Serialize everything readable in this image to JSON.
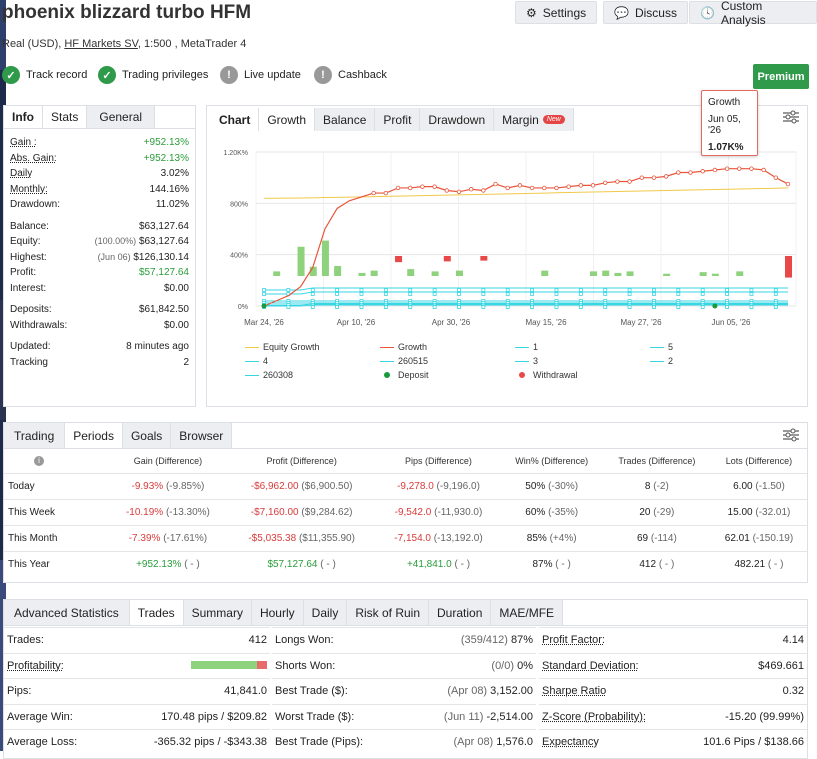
{
  "header": {
    "title": "phoenix blizzard turbo HFM",
    "settings": "Settings",
    "discuss": "Discuss",
    "custom": "Custom Analysis",
    "sub_prefix": "Real (USD), ",
    "broker": "HF Markets SV",
    "sub_suffix": ", 1:500 , MetaTrader 4"
  },
  "badges": [
    "Track record",
    "Trading privileges",
    "Live update",
    "Cashback"
  ],
  "premium": "Premium",
  "info_tabs": [
    "Info",
    "Stats",
    "General"
  ],
  "info_rows": [
    {
      "label": "Gain :",
      "value": "+952.13%",
      "color": "green",
      "u": true
    },
    {
      "label": "Abs. Gain:",
      "value": "+952.13%",
      "color": "green",
      "u": true
    },
    {
      "label": "Daily",
      "value": "3.02%",
      "u": true
    },
    {
      "label": "Monthly:",
      "value": "144.16%",
      "u": true
    },
    {
      "label": "Drawdown:",
      "value": "11.02%"
    },
    {
      "label": "Balance:",
      "value": "$63,127.64"
    },
    {
      "label": "Equity:",
      "pre": "(100.00%)",
      "value": "$63,127.64"
    },
    {
      "label": "Highest:",
      "pre": "(Jun 06)",
      "value": "$126,130.14"
    },
    {
      "label": "Profit:",
      "value": "$57,127.64",
      "color": "green"
    },
    {
      "label": "Interest:",
      "value": "$0.00"
    },
    {
      "label": "Deposits:",
      "value": "$61,842.50"
    },
    {
      "label": "Withdrawals:",
      "value": "$0.00"
    },
    {
      "label": "Updated:",
      "value": "8 minutes ago"
    },
    {
      "label": "Tracking",
      "value": "2"
    }
  ],
  "chart_tabs": [
    "Chart",
    "Growth",
    "Balance",
    "Profit",
    "Drawdown",
    "Margin"
  ],
  "new_tag": "New",
  "tooltip": {
    "title": "Growth",
    "date": "Jun 05, '26",
    "value": "1.07K%"
  },
  "chart_data": {
    "type": "line",
    "y_ticks": [
      "1.20K%",
      "800%",
      "400%",
      "0%"
    ],
    "x_ticks": [
      "Mar 24, '26",
      "Apr 10, '26",
      "Apr 30, '26",
      "May 15, '26",
      "May 27, '26",
      "Jun 05, '26"
    ],
    "ylim": [
      0,
      1200
    ],
    "growth": [
      0,
      40,
      80,
      150,
      300,
      600,
      760,
      820,
      850,
      880,
      880,
      920,
      920,
      930,
      930,
      900,
      890,
      910,
      900,
      950,
      920,
      940,
      920,
      920,
      920,
      930,
      940,
      940,
      960,
      970,
      970,
      1000,
      1000,
      1010,
      1040,
      1040,
      1050,
      1060,
      1070,
      1070,
      1070,
      1060,
      1000,
      950
    ],
    "equity_growth": [
      840,
      840,
      841,
      842,
      843,
      845,
      846,
      848,
      850,
      852,
      854,
      856,
      858,
      860,
      862,
      864,
      866,
      868,
      870,
      872,
      874,
      876,
      878,
      880,
      882,
      884,
      886,
      888,
      890,
      892,
      894,
      896,
      898,
      900,
      902,
      904,
      906,
      908,
      910,
      912,
      914,
      916,
      918,
      920
    ],
    "bars": [
      0,
      60,
      0,
      380,
      120,
      460,
      130,
      0,
      40,
      70,
      0,
      -80,
      90,
      0,
      60,
      -70,
      70,
      0,
      -60,
      0,
      0,
      0,
      0,
      70,
      0,
      0,
      0,
      60,
      70,
      40,
      60,
      0,
      0,
      30,
      0,
      0,
      50,
      30,
      0,
      60,
      0,
      0,
      0,
      -280
    ]
  },
  "legend": [
    "Equity Growth",
    "Growth",
    "1",
    "5",
    "4",
    "260515",
    "3",
    "2",
    "260308",
    "Deposit",
    "Withdrawal"
  ],
  "periods_tabs": [
    "Trading",
    "Periods",
    "Goals",
    "Browser"
  ],
  "periods_head": [
    "Gain (Difference)",
    "Profit (Difference)",
    "Pips (Difference)",
    "Win% (Difference)",
    "Trades (Difference)",
    "Lots (Difference)"
  ],
  "periods": [
    {
      "name": "Today",
      "gain": "-9.93%",
      "gain_d": "(-9.85%)",
      "profit": "-$6,962.00",
      "profit_d": "($6,900.50)",
      "pips": "-9,278.0",
      "pips_d": "(-9,196.0)",
      "win": "50%",
      "win_d": "(-30%)",
      "trades": "8",
      "trades_d": "(-2)",
      "lots": "6.00",
      "lots_d": "(-1.50)",
      "c": "red"
    },
    {
      "name": "This Week",
      "gain": "-10.19%",
      "gain_d": "(-13.30%)",
      "profit": "-$7,160.00",
      "profit_d": "($9,284.62)",
      "pips": "-9,542.0",
      "pips_d": "(-11,930.0)",
      "win": "60%",
      "win_d": "(-35%)",
      "trades": "20",
      "trades_d": "(-29)",
      "lots": "15.00",
      "lots_d": "(-32.01)",
      "c": "red"
    },
    {
      "name": "This Month",
      "gain": "-7.39%",
      "gain_d": "(-17.61%)",
      "profit": "-$5,035.38",
      "profit_d": "($11,355.90)",
      "pips": "-7,154.0",
      "pips_d": "(-13,192.0)",
      "win": "85%",
      "win_d": "(+4%)",
      "trades": "69",
      "trades_d": "(-114)",
      "lots": "62.01",
      "lots_d": "(-150.19)",
      "c": "red"
    },
    {
      "name": "This Year",
      "gain": "+952.13%",
      "gain_d": "( - )",
      "profit": "$57,127.64",
      "profit_d": "( - )",
      "pips": "+41,841.0",
      "pips_d": "( - )",
      "win": "87%",
      "win_d": "( - )",
      "trades": "412",
      "trades_d": "( - )",
      "lots": "482.21",
      "lots_d": "( - )",
      "c": "green"
    }
  ],
  "adv_tabs": [
    "Advanced Statistics",
    "Trades",
    "Summary",
    "Hourly",
    "Daily",
    "Risk of Ruin",
    "Duration",
    "MAE/MFE"
  ],
  "adv_rows": [
    {
      "l1": "Trades:",
      "v1": "412",
      "l2": "Longs Won:",
      "p2": "(359/412)",
      "v2": "87%",
      "l3": "Profit Factor:",
      "v3": "4.14"
    },
    {
      "l1": "Profitability:",
      "v1": "",
      "l2": "Shorts Won:",
      "p2": "(0/0)",
      "v2": "0%",
      "l3": "Standard Deviation:",
      "v3": "$469.661"
    },
    {
      "l1": "Pips:",
      "v1": "41,841.0",
      "l2": "Best Trade ($):",
      "p2": "(Apr 08)",
      "v2": "3,152.00",
      "l3": "Sharpe Ratio",
      "v3": "0.32"
    },
    {
      "l1": "Average Win:",
      "v1": "170.48 pips / $209.82",
      "l2": "Worst Trade ($):",
      "p2": "(Jun 11)",
      "v2": "-2,514.00",
      "l3": "Z-Score (Probability):",
      "v3": "-15.20 (99.99%)"
    },
    {
      "l1": "Average Loss:",
      "v1": "-365.32 pips / -$343.38",
      "l2": "Best Trade (Pips):",
      "p2": "(Apr 08)",
      "v2": "1,576.0",
      "l3": "Expectancy",
      "v3": "101.6 Pips / $138.66"
    }
  ],
  "colors": {
    "green": "#2a9d3a",
    "red": "#d93b3b",
    "growth": "#e8553a",
    "equity": "#f0c94a",
    "cyan": "#37d6e3",
    "bar_pos": "#8fd27e",
    "bar_neg": "#e84848",
    "premium": "#2e9a4a"
  }
}
